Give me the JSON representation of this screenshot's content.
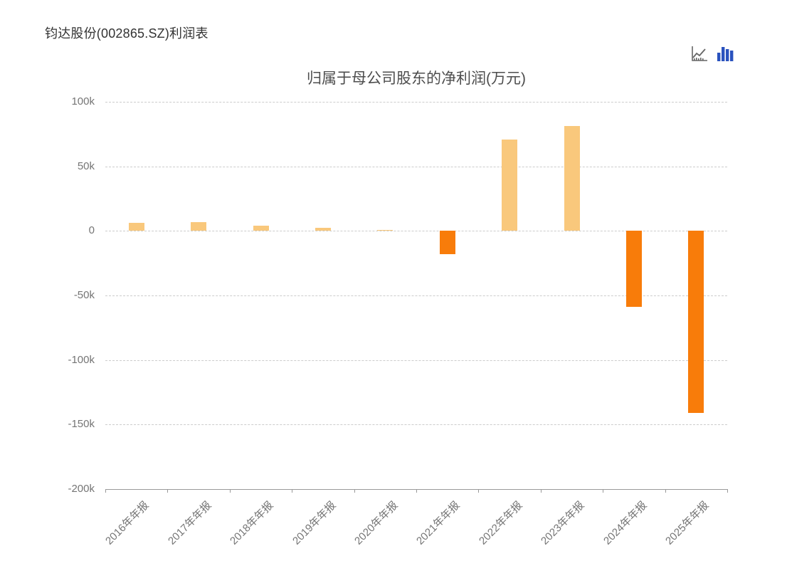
{
  "page": {
    "title": "钧达股份(002865.SZ)利润表"
  },
  "toolbar": {
    "line_chart_icon": "line-chart-toggle",
    "bar_chart_icon": "bar-chart-toggle",
    "line_icon_color": "#666666",
    "bar_icon_color": "#2a52be"
  },
  "chart_data": {
    "type": "bar",
    "title": "归属于母公司股东的净利润(万元)",
    "series_name": "归属于母公司股东的净利润",
    "unit": "万元",
    "categories": [
      "2016年年报",
      "2017年年报",
      "2018年年报",
      "2019年年报",
      "2020年年报",
      "2021年年报",
      "2022年年报",
      "2023年年报",
      "2024年年报",
      "2025年年报"
    ],
    "values": [
      6300,
      6700,
      4300,
      2200,
      900,
      -18000,
      71000,
      81000,
      -59000,
      -141000
    ],
    "ylim": [
      -200000,
      100000
    ],
    "y_ticks": [
      {
        "value": 100000,
        "label": "100k"
      },
      {
        "value": 50000,
        "label": "50k"
      },
      {
        "value": 0,
        "label": "0"
      },
      {
        "value": -50000,
        "label": "-50k"
      },
      {
        "value": -100000,
        "label": "-100k"
      },
      {
        "value": -150000,
        "label": "-150k"
      },
      {
        "value": -200000,
        "label": "-200k"
      }
    ],
    "grid": "horizontal-dashed",
    "legend": "none",
    "x_label_rotation": -45,
    "positive_color": "#f9c87c",
    "negative_color": "#f87c0a",
    "gridline_color": "#cccccc",
    "axis_color": "#999999",
    "tick_label_color": "#757575"
  }
}
